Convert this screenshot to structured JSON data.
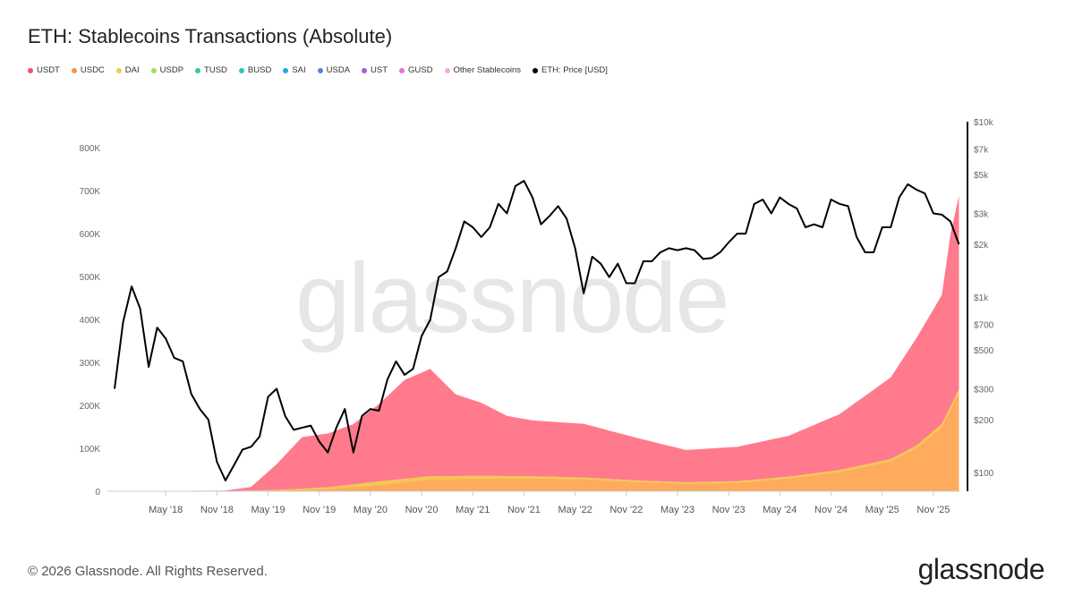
{
  "title": "ETH: Stablecoins Transactions (Absolute)",
  "footer": "© 2026 Glassnode. All Rights Reserved.",
  "brand": "glassnode",
  "watermark": "glassnode",
  "legend": [
    {
      "label": "USDT",
      "color": "#f0506e"
    },
    {
      "label": "USDC",
      "color": "#f7944b"
    },
    {
      "label": "DAI",
      "color": "#f2c94c"
    },
    {
      "label": "USDP",
      "color": "#a3e05b"
    },
    {
      "label": "TUSD",
      "color": "#36c98a"
    },
    {
      "label": "BUSD",
      "color": "#2ec4b6"
    },
    {
      "label": "SAI",
      "color": "#2ba5e0"
    },
    {
      "label": "USDA",
      "color": "#5b7de8"
    },
    {
      "label": "UST",
      "color": "#a25fd9"
    },
    {
      "label": "GUSD",
      "color": "#e86ee0"
    },
    {
      "label": "Other Stablecoins",
      "color": "#f5a6e6"
    },
    {
      "label": "ETH: Price [USD]",
      "color": "#000000"
    }
  ],
  "chart_data": {
    "type": "area",
    "title": "ETH: Stablecoins Transactions (Absolute)",
    "x_ticks": [
      "May '18",
      "Nov '18",
      "May '19",
      "Nov '19",
      "May '20",
      "Nov '20",
      "May '21",
      "Nov '21",
      "May '22",
      "Nov '22",
      "May '23",
      "Nov '23",
      "May '24",
      "Nov '24",
      "May '25",
      "Nov '25"
    ],
    "x_tick_dates": [
      "2018-05",
      "2018-11",
      "2019-05",
      "2019-11",
      "2020-05",
      "2020-11",
      "2021-05",
      "2021-11",
      "2022-05",
      "2022-11",
      "2023-05",
      "2023-11",
      "2024-05",
      "2024-11",
      "2025-05",
      "2025-11"
    ],
    "y_left": {
      "ticks": [
        "0",
        "100K",
        "200K",
        "300K",
        "400K",
        "500K",
        "600K",
        "700K",
        "800K"
      ],
      "range": [
        0,
        800000
      ]
    },
    "y_right": {
      "scale": "log",
      "ticks": [
        "$100",
        "$200",
        "$300",
        "$500",
        "$700",
        "$1k",
        "$2k",
        "$3k",
        "$5k",
        "$7k",
        "$10k"
      ],
      "tick_values": [
        100,
        200,
        300,
        500,
        700,
        1000,
        2000,
        3000,
        5000,
        7000,
        10000
      ],
      "range": [
        78,
        10000
      ]
    },
    "grid": false,
    "legend_position": "top-left",
    "stack_series": [
      {
        "name": "USDC",
        "color": "#ffab5e",
        "points": [
          [
            "2017-11",
            0
          ],
          [
            "2018-12",
            0
          ],
          [
            "2019-06",
            2000
          ],
          [
            "2019-12",
            5000
          ],
          [
            "2020-06",
            15000
          ],
          [
            "2020-12",
            28000
          ],
          [
            "2021-06",
            30000
          ],
          [
            "2021-12",
            30000
          ],
          [
            "2022-06",
            28000
          ],
          [
            "2022-12",
            22000
          ],
          [
            "2023-06",
            18000
          ],
          [
            "2023-12",
            20000
          ],
          [
            "2024-06",
            30000
          ],
          [
            "2024-12",
            45000
          ],
          [
            "2025-06",
            70000
          ],
          [
            "2025-09",
            100000
          ],
          [
            "2025-12",
            150000
          ],
          [
            "2026-01",
            190000
          ],
          [
            "2026-02",
            230000
          ]
        ]
      },
      {
        "name": "DAI",
        "color": "#f2c94c",
        "points": [
          [
            "2017-11",
            0
          ],
          [
            "2019-06",
            1000
          ],
          [
            "2020-06",
            8000
          ],
          [
            "2021-06",
            6000
          ],
          [
            "2022-06",
            4000
          ],
          [
            "2023-06",
            3000
          ],
          [
            "2024-06",
            4000
          ],
          [
            "2025-06",
            5000
          ],
          [
            "2026-02",
            8000
          ]
        ]
      },
      {
        "name": "USDT",
        "color": "#ff7a8c",
        "points": [
          [
            "2017-11",
            0
          ],
          [
            "2018-12",
            1000
          ],
          [
            "2019-03",
            8000
          ],
          [
            "2019-06",
            60000
          ],
          [
            "2019-09",
            120000
          ],
          [
            "2019-12",
            125000
          ],
          [
            "2020-03",
            140000
          ],
          [
            "2020-06",
            180000
          ],
          [
            "2020-09",
            230000
          ],
          [
            "2020-12",
            250000
          ],
          [
            "2021-03",
            190000
          ],
          [
            "2021-06",
            170000
          ],
          [
            "2021-09",
            140000
          ],
          [
            "2021-12",
            130000
          ],
          [
            "2022-06",
            125000
          ],
          [
            "2022-12",
            100000
          ],
          [
            "2023-06",
            75000
          ],
          [
            "2023-12",
            80000
          ],
          [
            "2024-06",
            95000
          ],
          [
            "2024-12",
            130000
          ],
          [
            "2025-06",
            190000
          ],
          [
            "2025-09",
            250000
          ],
          [
            "2025-12",
            300000
          ],
          [
            "2026-01",
            400000
          ],
          [
            "2026-02",
            450000
          ]
        ]
      }
    ],
    "eth_price": {
      "name": "ETH: Price [USD]",
      "color": "#000000",
      "points": [
        [
          "2017-11",
          300
        ],
        [
          "2017-12",
          720
        ],
        [
          "2018-01",
          1150
        ],
        [
          "2018-02",
          860
        ],
        [
          "2018-03",
          400
        ],
        [
          "2018-04",
          670
        ],
        [
          "2018-05",
          580
        ],
        [
          "2018-06",
          450
        ],
        [
          "2018-07",
          430
        ],
        [
          "2018-08",
          280
        ],
        [
          "2018-09",
          230
        ],
        [
          "2018-10",
          200
        ],
        [
          "2018-11",
          115
        ],
        [
          "2018-12",
          90
        ],
        [
          "2019-01",
          110
        ],
        [
          "2019-02",
          135
        ],
        [
          "2019-03",
          140
        ],
        [
          "2019-04",
          160
        ],
        [
          "2019-05",
          270
        ],
        [
          "2019-06",
          300
        ],
        [
          "2019-07",
          210
        ],
        [
          "2019-08",
          175
        ],
        [
          "2019-09",
          180
        ],
        [
          "2019-10",
          185
        ],
        [
          "2019-11",
          150
        ],
        [
          "2019-12",
          130
        ],
        [
          "2020-01",
          180
        ],
        [
          "2020-02",
          230
        ],
        [
          "2020-03",
          130
        ],
        [
          "2020-04",
          210
        ],
        [
          "2020-05",
          230
        ],
        [
          "2020-06",
          225
        ],
        [
          "2020-07",
          340
        ],
        [
          "2020-08",
          430
        ],
        [
          "2020-09",
          360
        ],
        [
          "2020-10",
          390
        ],
        [
          "2020-11",
          600
        ],
        [
          "2020-12",
          740
        ],
        [
          "2021-01",
          1300
        ],
        [
          "2021-02",
          1400
        ],
        [
          "2021-03",
          1900
        ],
        [
          "2021-04",
          2700
        ],
        [
          "2021-05",
          2500
        ],
        [
          "2021-06",
          2200
        ],
        [
          "2021-07",
          2500
        ],
        [
          "2021-08",
          3400
        ],
        [
          "2021-09",
          3000
        ],
        [
          "2021-10",
          4300
        ],
        [
          "2021-11",
          4600
        ],
        [
          "2021-12",
          3700
        ],
        [
          "2022-01",
          2600
        ],
        [
          "2022-02",
          2900
        ],
        [
          "2022-03",
          3300
        ],
        [
          "2022-04",
          2800
        ],
        [
          "2022-05",
          1900
        ],
        [
          "2022-06",
          1050
        ],
        [
          "2022-07",
          1700
        ],
        [
          "2022-08",
          1550
        ],
        [
          "2022-09",
          1300
        ],
        [
          "2022-10",
          1550
        ],
        [
          "2022-11",
          1200
        ],
        [
          "2022-12",
          1200
        ],
        [
          "2023-01",
          1600
        ],
        [
          "2023-02",
          1600
        ],
        [
          "2023-03",
          1800
        ],
        [
          "2023-04",
          1900
        ],
        [
          "2023-05",
          1850
        ],
        [
          "2023-06",
          1900
        ],
        [
          "2023-07",
          1850
        ],
        [
          "2023-08",
          1650
        ],
        [
          "2023-09",
          1670
        ],
        [
          "2023-10",
          1800
        ],
        [
          "2023-11",
          2050
        ],
        [
          "2023-12",
          2300
        ],
        [
          "2024-01",
          2300
        ],
        [
          "2024-02",
          3400
        ],
        [
          "2024-03",
          3600
        ],
        [
          "2024-04",
          3000
        ],
        [
          "2024-05",
          3700
        ],
        [
          "2024-06",
          3400
        ],
        [
          "2024-07",
          3200
        ],
        [
          "2024-08",
          2500
        ],
        [
          "2024-09",
          2600
        ],
        [
          "2024-10",
          2500
        ],
        [
          "2024-11",
          3600
        ],
        [
          "2024-12",
          3400
        ],
        [
          "2025-01",
          3300
        ],
        [
          "2025-02",
          2200
        ],
        [
          "2025-03",
          1800
        ],
        [
          "2025-04",
          1800
        ],
        [
          "2025-05",
          2500
        ],
        [
          "2025-06",
          2500
        ],
        [
          "2025-07",
          3700
        ],
        [
          "2025-08",
          4400
        ],
        [
          "2025-09",
          4100
        ],
        [
          "2025-10",
          3900
        ],
        [
          "2025-11",
          3000
        ],
        [
          "2025-12",
          2950
        ],
        [
          "2026-01",
          2700
        ],
        [
          "2026-02",
          2000
        ]
      ]
    }
  }
}
